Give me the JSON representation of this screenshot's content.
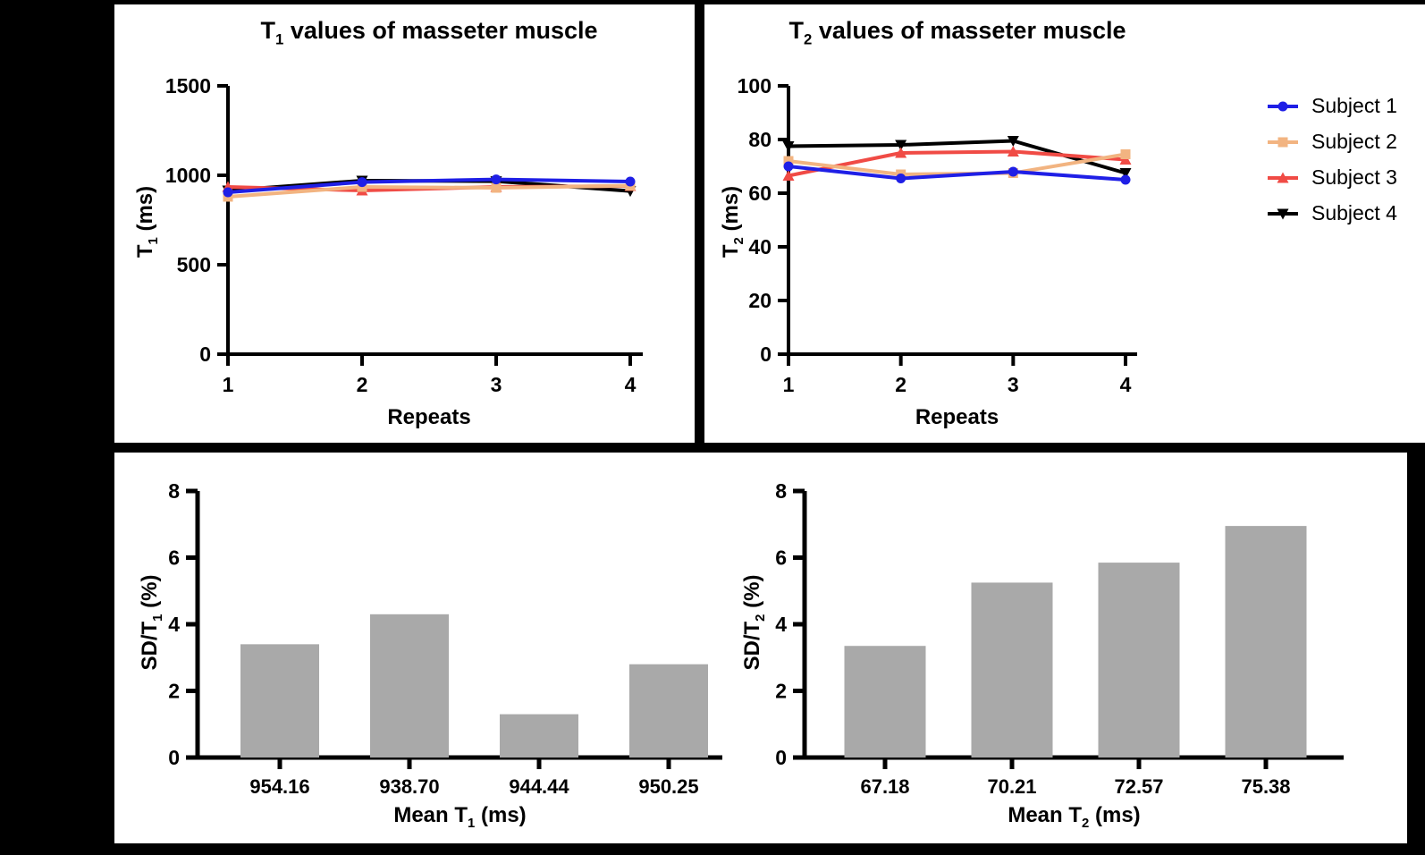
{
  "figure": {
    "background": "#000000",
    "panel_background": "#ffffff",
    "axis_color": "#000000",
    "tick_label_color": "#000000"
  },
  "chart_data": [
    {
      "id": "t1_values",
      "type": "line",
      "title": {
        "base": "T",
        "sub": "1",
        "rest": " values of masseter muscle"
      },
      "xlabel": "Repeats",
      "ylabel": {
        "base": "T",
        "sub": "1",
        "rest": " (ms)"
      },
      "x": [
        1,
        2,
        3,
        4
      ],
      "xticks": [
        "1",
        "2",
        "3",
        "4"
      ],
      "ylim": [
        0,
        1500
      ],
      "yticks": [
        0,
        500,
        1000,
        1500
      ],
      "grid": false,
      "legend": false,
      "series": [
        {
          "name": "Subject 1",
          "color": "#1f1fe6",
          "marker": "circle",
          "values": [
            905,
            962,
            977,
            965
          ]
        },
        {
          "name": "Subject 2",
          "color": "#f2b481",
          "marker": "square",
          "values": [
            880,
            935,
            930,
            942
          ]
        },
        {
          "name": "Subject 3",
          "color": "#f04b45",
          "marker": "triangle-up",
          "values": [
            935,
            915,
            935,
            940
          ]
        },
        {
          "name": "Subject 4",
          "color": "#000000",
          "marker": "triangle-down",
          "values": [
            915,
            970,
            967,
            912
          ]
        }
      ]
    },
    {
      "id": "t2_values",
      "type": "line",
      "title": {
        "base": "T",
        "sub": "2",
        "rest": " values of masseter muscle"
      },
      "xlabel": "Repeats",
      "ylabel": {
        "base": "T",
        "sub": "2",
        "rest": " (ms)"
      },
      "x": [
        1,
        2,
        3,
        4
      ],
      "xticks": [
        "1",
        "2",
        "3",
        "4"
      ],
      "ylim": [
        0,
        100
      ],
      "yticks": [
        0,
        20,
        40,
        60,
        80,
        100
      ],
      "grid": false,
      "legend": true,
      "legend_position": "right",
      "series": [
        {
          "name": "Subject 1",
          "color": "#1f1fe6",
          "marker": "circle",
          "values": [
            70,
            65.5,
            68,
            65
          ]
        },
        {
          "name": "Subject 2",
          "color": "#f2b481",
          "marker": "square",
          "values": [
            72,
            67,
            67.5,
            74.5
          ]
        },
        {
          "name": "Subject 3",
          "color": "#f04b45",
          "marker": "triangle-up",
          "values": [
            66.5,
            75,
            75.5,
            72.5
          ]
        },
        {
          "name": "Subject 4",
          "color": "#000000",
          "marker": "triangle-down",
          "values": [
            77.5,
            78,
            79.5,
            67.5
          ]
        }
      ]
    },
    {
      "id": "sd_t1",
      "type": "bar",
      "title": "",
      "xlabel": {
        "base": "Mean T",
        "sub": "1",
        "rest": " (ms)"
      },
      "ylabel": {
        "base": "SD/T",
        "sub": "1",
        "rest": " (%)"
      },
      "categories": [
        "954.16",
        "938.70",
        "944.44",
        "950.25"
      ],
      "values": [
        3.4,
        4.3,
        1.3,
        2.8
      ],
      "ylim": [
        0,
        8
      ],
      "yticks": [
        0,
        2,
        4,
        6,
        8
      ],
      "grid": false,
      "bar_color": "#a9a9a9"
    },
    {
      "id": "sd_t2",
      "type": "bar",
      "title": "",
      "xlabel": {
        "base": "Mean T",
        "sub": "2",
        "rest": " (ms)"
      },
      "ylabel": {
        "base": "SD/T",
        "sub": "2",
        "rest": " (%)"
      },
      "categories": [
        "67.18",
        "70.21",
        "72.57",
        "75.38"
      ],
      "values": [
        3.35,
        5.25,
        5.85,
        6.95
      ],
      "ylim": [
        0,
        8
      ],
      "yticks": [
        0,
        2,
        4,
        6,
        8
      ],
      "grid": false,
      "bar_color": "#a9a9a9"
    }
  ]
}
